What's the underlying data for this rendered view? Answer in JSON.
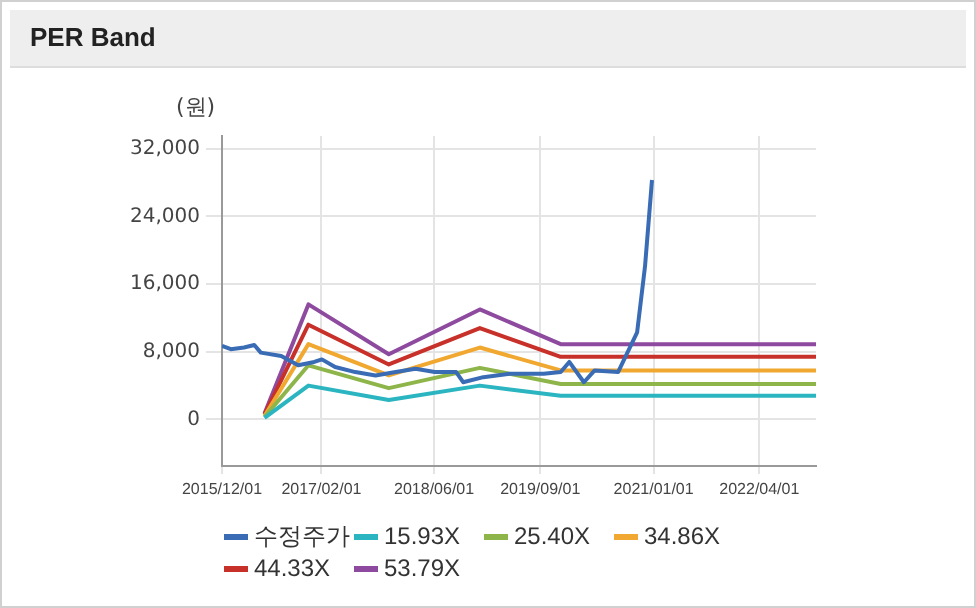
{
  "chart_data": {
    "type": "line",
    "title": "PER Band",
    "ylabel": "(원)",
    "xlim": [
      "2015-12-01",
      "2022-12-01"
    ],
    "xticks": [
      {
        "value": "2015-12-01",
        "label": "2015/12/01"
      },
      {
        "value": "2017-02-01",
        "label": "2017/02/01"
      },
      {
        "value": "2018-06-01",
        "label": "2018/06/01"
      },
      {
        "value": "2019-09-01",
        "label": "2019/09/01"
      },
      {
        "value": "2021-01-01",
        "label": "2021/01/01"
      },
      {
        "value": "2022-04-01",
        "label": "2022/04/01"
      }
    ],
    "ylim": [
      -5500,
      33500
    ],
    "yticks": [
      {
        "value": 0,
        "label": "0"
      },
      {
        "value": 8000,
        "label": "8,000"
      },
      {
        "value": 16000,
        "label": "16,000"
      },
      {
        "value": 24000,
        "label": "24,000"
      },
      {
        "value": 32000,
        "label": "32,000"
      }
    ],
    "grid": true,
    "legend": "bottom",
    "marker": "none",
    "line_style": "solid",
    "series": [
      {
        "name": "수정주가",
        "color": "#3a6cb5",
        "x": [
          "2015-12-01",
          "2016-01-08",
          "2016-03-05",
          "2016-04-18",
          "2016-05-16",
          "2016-08-12",
          "2016-10-24",
          "2017-01-01",
          "2017-02-03",
          "2017-04-01",
          "2017-06-27",
          "2017-09-22",
          "2017-12-18",
          "2018-03-13",
          "2018-06-04",
          "2018-09-04",
          "2018-10-04",
          "2018-12-30",
          "2019-04-24",
          "2019-09-16",
          "2019-11-28",
          "2020-01-04",
          "2020-03-07",
          "2020-04-22",
          "2020-08-01",
          "2020-10-22",
          "2020-11-25",
          "2020-12-25"
        ],
        "values": [
          8700,
          8300,
          8500,
          8800,
          7900,
          7500,
          6400,
          6800,
          7100,
          6200,
          5600,
          5200,
          5600,
          6000,
          5600,
          5600,
          4400,
          5000,
          5400,
          5400,
          5600,
          6800,
          4400,
          5800,
          5600,
          10300,
          18100,
          28300
        ]
      },
      {
        "name": "15.93X",
        "color": "#2ab5c0",
        "x": [
          "2016-06-01",
          "2016-12-07",
          "2017-11-18",
          "2018-12-15",
          "2019-11-28",
          "2022-12-01"
        ],
        "values": [
          200,
          4000,
          2300,
          4000,
          2800,
          2800
        ]
      },
      {
        "name": "25.40X",
        "color": "#8db54a",
        "x": [
          "2016-06-01",
          "2016-12-07",
          "2017-11-18",
          "2018-12-15",
          "2019-11-28",
          "2022-12-01"
        ],
        "values": [
          300,
          6400,
          3700,
          6100,
          4200,
          4200
        ]
      },
      {
        "name": "34.86X",
        "color": "#f0a830",
        "x": [
          "2016-06-01",
          "2016-12-07",
          "2017-11-18",
          "2018-12-15",
          "2019-11-28",
          "2022-12-01"
        ],
        "values": [
          400,
          8900,
          5200,
          8500,
          5800,
          5800
        ]
      },
      {
        "name": "44.33X",
        "color": "#c8302a",
        "x": [
          "2016-06-01",
          "2016-12-07",
          "2017-11-18",
          "2018-12-15",
          "2019-11-28",
          "2022-12-01"
        ],
        "values": [
          600,
          11200,
          6500,
          10800,
          7400,
          7400
        ]
      },
      {
        "name": "53.79X",
        "color": "#8e4a9e",
        "x": [
          "2016-06-01",
          "2016-12-07",
          "2017-11-18",
          "2018-12-15",
          "2019-11-28",
          "2022-12-01"
        ],
        "values": [
          700,
          13600,
          7700,
          13000,
          8900,
          8900
        ]
      }
    ]
  }
}
